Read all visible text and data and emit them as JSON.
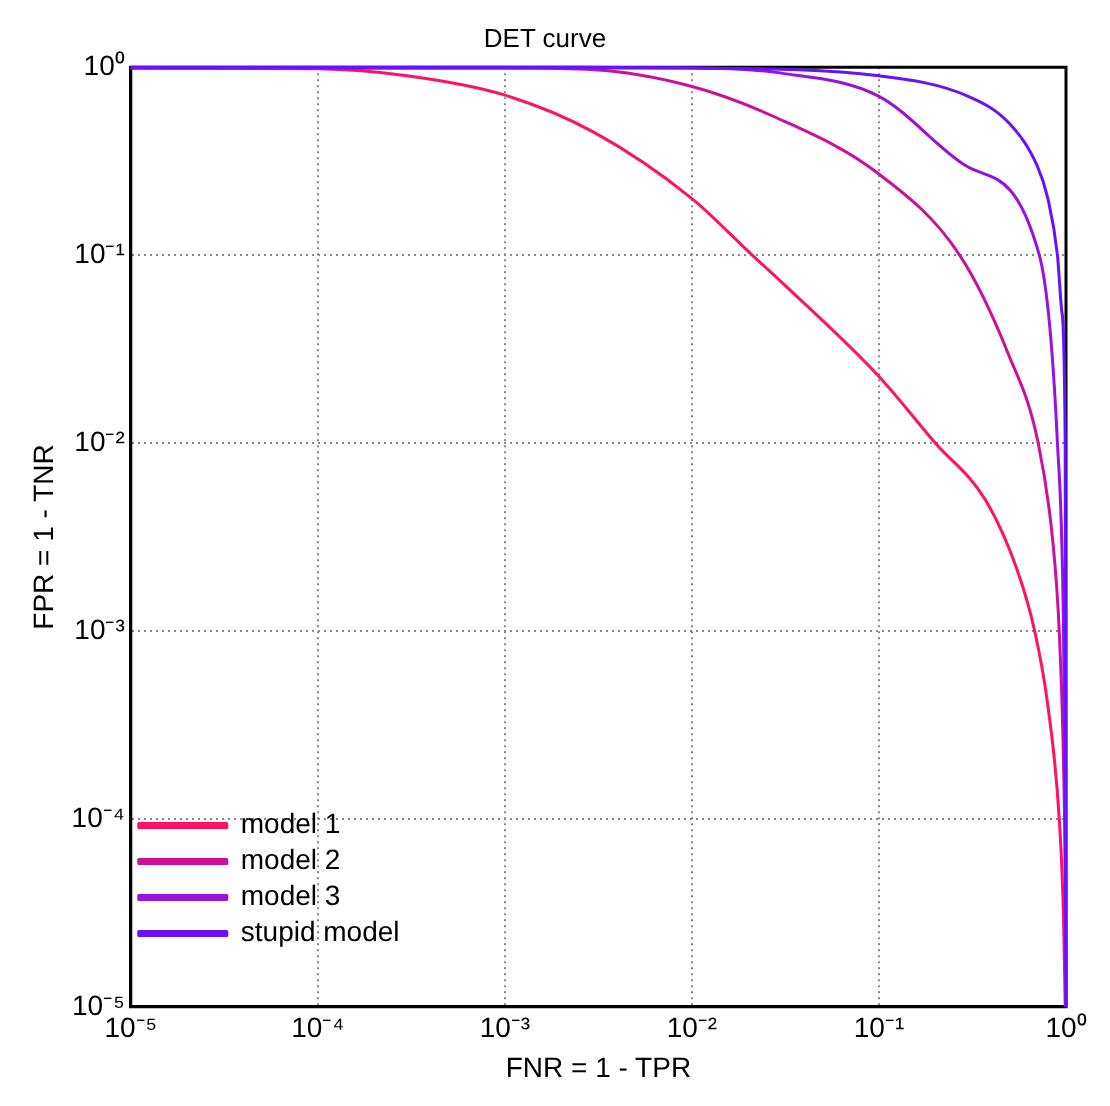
{
  "chart_data": {
    "type": "line",
    "title": "DET curve",
    "xlabel": "FNR = 1 - TPR",
    "ylabel": "FPR = 1 - TNR",
    "log": "xy",
    "grid": true,
    "legend": "bottom left",
    "xlim": [
      1e-05,
      1
    ],
    "ylim": [
      1e-05,
      1
    ],
    "xticks": [
      {
        "value": 1e-05,
        "label": "10⁻⁵"
      },
      {
        "value": 0.0001,
        "label": "10⁻⁴"
      },
      {
        "value": 0.001,
        "label": "10⁻³"
      },
      {
        "value": 0.01,
        "label": "10⁻²"
      },
      {
        "value": 0.1,
        "label": "10⁻¹"
      },
      {
        "value": 1,
        "label": "10⁰"
      }
    ],
    "yticks": [
      {
        "value": 1e-05,
        "label": "10⁻⁵"
      },
      {
        "value": 0.0001,
        "label": "10⁻⁴"
      },
      {
        "value": 0.001,
        "label": "10⁻³"
      },
      {
        "value": 0.01,
        "label": "10⁻²"
      },
      {
        "value": 0.1,
        "label": "10⁻¹"
      },
      {
        "value": 1,
        "label": "10⁰"
      }
    ],
    "series": [
      {
        "name": "model 1",
        "color": "#ff1166",
        "x": [
          1e-05,
          0.0001,
          0.0003,
          0.001,
          0.003,
          0.01,
          0.021,
          0.032,
          0.1,
          0.2,
          0.37,
          0.54,
          0.68,
          0.8,
          0.92,
          0.97,
          0.99
        ],
        "values": [
          0.99,
          0.98,
          0.9,
          0.71,
          0.45,
          0.2,
          0.1,
          0.068,
          0.0226,
          0.01,
          0.005,
          0.0022,
          0.001,
          0.0004,
          0.0001,
          3e-05,
          1e-05
        ]
      },
      {
        "name": "model 2",
        "color": "#cc1199",
        "x": [
          1e-05,
          0.001,
          0.003,
          0.01,
          0.027,
          0.1,
          0.27,
          0.49,
          0.71,
          0.85,
          0.92,
          0.97,
          0.99,
          0.999
        ],
        "values": [
          0.99,
          0.99,
          0.97,
          0.79,
          0.55,
          0.27,
          0.1,
          0.03,
          0.01,
          0.003,
          0.001,
          0.0002,
          5e-05,
          1e-05
        ]
      },
      {
        "name": "model 3",
        "color": "#9911dd",
        "x": [
          1e-05,
          0.001,
          0.01,
          0.03,
          0.1,
          0.29,
          0.72,
          0.9,
          0.97,
          0.99,
          0.9999
        ],
        "values": [
          0.99,
          0.99,
          0.99,
          0.93,
          0.7,
          0.3,
          0.1,
          0.01,
          0.001,
          0.0001,
          1e-05
        ]
      },
      {
        "name": "stupid model",
        "color": "#6611ff",
        "x": [
          1e-05,
          0.0001,
          0.001,
          0.01,
          0.1,
          0.3,
          0.5,
          0.7,
          0.8,
          0.9,
          0.95,
          0.99,
          0.99999
        ],
        "values": [
          0.99999,
          0.9999,
          0.999,
          0.99,
          0.9,
          0.7,
          0.5,
          0.3,
          0.2,
          0.1,
          0.05,
          0.01,
          1e-05
        ]
      }
    ]
  }
}
